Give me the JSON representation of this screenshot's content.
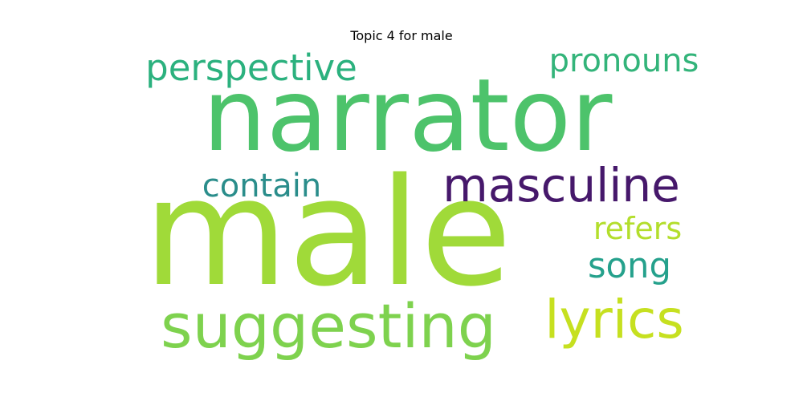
{
  "title": "Topic 4 for male",
  "words": [
    {
      "text": "narrator",
      "color": "#4dc36b"
    },
    {
      "text": "male",
      "color": "#a0da39"
    },
    {
      "text": "masculine",
      "color": "#46186b"
    },
    {
      "text": "perspective",
      "color": "#2bb17e"
    },
    {
      "text": "pronouns",
      "color": "#33b47a"
    },
    {
      "text": "contain",
      "color": "#2a8d8b"
    },
    {
      "text": "refers",
      "color": "#b3de2c"
    },
    {
      "text": "song",
      "color": "#25a18c"
    },
    {
      "text": "suggesting",
      "color": "#7ed24e"
    },
    {
      "text": "lyrics",
      "color": "#c6e020"
    }
  ]
}
